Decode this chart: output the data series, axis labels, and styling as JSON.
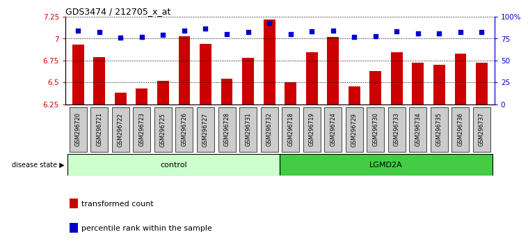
{
  "title": "GDS3474 / 212705_x_at",
  "samples": [
    "GSM296720",
    "GSM296721",
    "GSM296722",
    "GSM296723",
    "GSM296725",
    "GSM296726",
    "GSM296727",
    "GSM296728",
    "GSM296731",
    "GSM296732",
    "GSM296718",
    "GSM296719",
    "GSM296724",
    "GSM296729",
    "GSM296730",
    "GSM296733",
    "GSM296734",
    "GSM296735",
    "GSM296736",
    "GSM296737"
  ],
  "bar_values": [
    6.93,
    6.79,
    6.38,
    6.43,
    6.52,
    7.03,
    6.94,
    6.54,
    6.78,
    7.22,
    6.5,
    6.84,
    7.02,
    6.45,
    6.63,
    6.84,
    6.72,
    6.7,
    6.83,
    6.72
  ],
  "dot_values": [
    84,
    82,
    76,
    77,
    79,
    84,
    86,
    80,
    82,
    93,
    80,
    83,
    84,
    77,
    78,
    83,
    81,
    81,
    82,
    82
  ],
  "control_count": 10,
  "lgmd2a_count": 10,
  "ylim_left": [
    6.25,
    7.25
  ],
  "ylim_right": [
    0,
    100
  ],
  "yticks_left": [
    6.25,
    6.5,
    6.75,
    7.0,
    7.25
  ],
  "yticks_right": [
    0,
    25,
    50,
    75,
    100
  ],
  "ytick_labels_left": [
    "6.25",
    "6.5",
    "6.75",
    "7",
    "7.25"
  ],
  "ytick_labels_right": [
    "0",
    "25",
    "50",
    "75",
    "100%"
  ],
  "bar_color": "#cc0000",
  "dot_color": "#0000cc",
  "control_color": "#ccffcc",
  "lgmd2a_color": "#44cc44",
  "tick_box_color": "#cccccc",
  "legend_bar_label": "transformed count",
  "legend_dot_label": "percentile rank within the sample",
  "group_label_left": "control",
  "group_label_right": "LGMD2A",
  "disease_state_label": "disease state"
}
